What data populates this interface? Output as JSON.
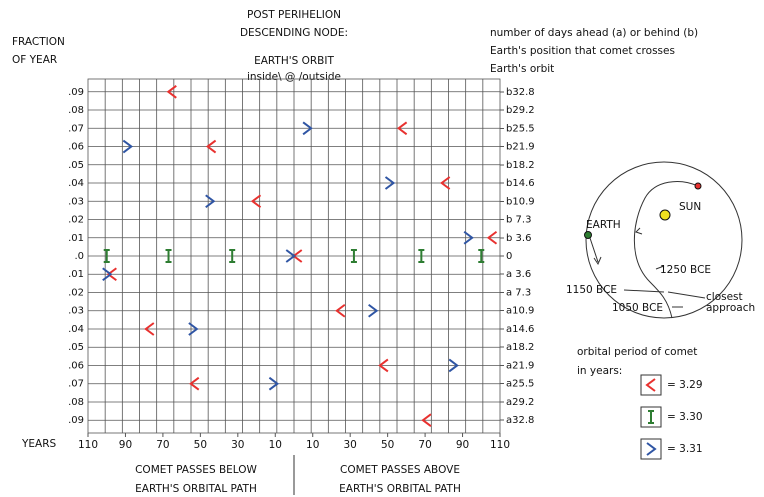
{
  "chart_data": {
    "type": "scatter",
    "title_lines": [
      "POST PERIHELION",
      "DESCENDING NODE:"
    ],
    "subtitle_lines": [
      "EARTH'S ORBIT",
      "inside\\ @ /outside"
    ],
    "y_label_lines": [
      "FRACTION",
      "OF YEAR"
    ],
    "x_label": "YEARS",
    "y2_label_lines": [
      "number of days ahead (a) or behind (b)",
      "Earth's position that comet crosses",
      "Earth's orbit"
    ],
    "bottom_left_lines": [
      "COMET PASSES BELOW",
      "EARTH'S ORBITAL PATH"
    ],
    "bottom_right_lines": [
      "COMET PASSES ABOVE",
      "EARTH'S ORBITAL PATH"
    ],
    "xlim": [
      -110,
      110
    ],
    "xticks": [
      {
        "value": -110,
        "label": "110"
      },
      {
        "value": -90,
        "label": "90"
      },
      {
        "value": -70,
        "label": "70"
      },
      {
        "value": -50,
        "label": "50"
      },
      {
        "value": -30,
        "label": "30"
      },
      {
        "value": -10,
        "label": "10"
      },
      10,
      30,
      50,
      70,
      90,
      110
    ],
    "ylim": [
      -0.097,
      0.097
    ],
    "yticks": [
      {
        "value": 0.09,
        "label": ".09"
      },
      {
        "value": 0.08,
        "label": ".08"
      },
      {
        "value": 0.07,
        "label": ".07"
      },
      {
        "value": 0.06,
        "label": ".06"
      },
      {
        "value": 0.05,
        "label": ".05"
      },
      {
        "value": 0.04,
        "label": ".04"
      },
      {
        "value": 0.03,
        "label": ".03"
      },
      {
        "value": 0.02,
        "label": ".02"
      },
      {
        "value": 0.01,
        "label": ".01"
      },
      {
        "value": 0,
        "label": ".0"
      },
      {
        "value": -0.01,
        "label": ".01"
      },
      {
        "value": -0.02,
        "label": ".02"
      },
      {
        "value": -0.03,
        "label": ".03"
      },
      {
        "value": -0.04,
        "label": ".04"
      },
      {
        "value": -0.05,
        "label": ".05"
      },
      {
        "value": -0.06,
        "label": ".06"
      },
      {
        "value": -0.07,
        "label": ".07"
      },
      {
        "value": -0.08,
        "label": ".08"
      },
      {
        "value": -0.09,
        "label": ".09"
      }
    ],
    "y2lim": [
      -35.4,
      35.4
    ],
    "y2ticks": [
      {
        "value": 32.8,
        "label": "b32.8"
      },
      {
        "value": 29.2,
        "label": "b29.2"
      },
      {
        "value": 25.5,
        "label": "b25.5"
      },
      {
        "value": 21.9,
        "label": "b21.9"
      },
      {
        "value": 18.2,
        "label": "b18.2"
      },
      {
        "value": 14.6,
        "label": "b14.6"
      },
      {
        "value": 10.9,
        "label": "b10.9"
      },
      {
        "value": 7.3,
        "label": "b 7.3"
      },
      {
        "value": 3.6,
        "label": "b 3.6"
      },
      0,
      {
        "value": -3.6,
        "label": "a 3.6"
      },
      {
        "value": -7.3,
        "label": "a 7.3"
      },
      {
        "value": -10.9,
        "label": "a10.9"
      },
      {
        "value": -14.6,
        "label": "a14.6"
      },
      {
        "value": -18.2,
        "label": "a18.2"
      },
      {
        "value": -21.9,
        "label": "a21.9"
      },
      {
        "value": -25.5,
        "label": "a25.5"
      },
      {
        "value": -29.2,
        "label": "a29.2"
      },
      {
        "value": -32.8,
        "label": "a32.8"
      }
    ],
    "grid": true,
    "legend_title_lines": [
      "orbital period of comet",
      "in years:"
    ],
    "series": [
      {
        "name": "= 3.29",
        "color": "#e8312f",
        "marker": "left-chevron",
        "x": [
          -65,
          58,
          -44,
          81,
          -20,
          106,
          2,
          -97,
          25,
          -77,
          48,
          -53,
          71
        ],
        "y": [
          0.09,
          0.07,
          0.06,
          0.04,
          0.03,
          0.01,
          0,
          -0.01,
          -0.03,
          -0.04,
          -0.06,
          -0.07,
          -0.09
        ]
      },
      {
        "name": "= 3.30",
        "color": "#2e7d32",
        "marker": "i-beam",
        "x": [
          -100,
          -67,
          -33,
          32,
          68,
          100
        ],
        "y": [
          0,
          0,
          0,
          0,
          0,
          0
        ]
      },
      {
        "name": "= 3.31",
        "color": "#2f55a4",
        "marker": "right-chevron",
        "x": [
          7,
          -89,
          51,
          -45,
          93,
          -2,
          -100,
          42,
          -54,
          85,
          -11
        ],
        "y": [
          0.07,
          0.06,
          0.04,
          0.03,
          0.01,
          0,
          -0.01,
          -0.03,
          -0.04,
          -0.06,
          -0.07
        ]
      }
    ],
    "orbit_labels": {
      "earth": "EARTH",
      "sun": "SUN",
      "date_1": "1250 BCE",
      "date_2": "1150 BCE",
      "date_3": "1050 BCE",
      "closest": "closest",
      "approach": "approach"
    }
  }
}
